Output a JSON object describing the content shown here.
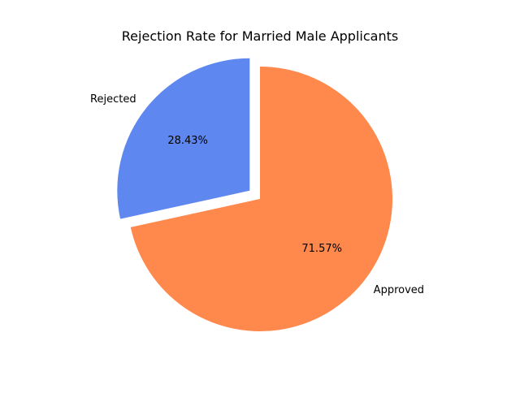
{
  "chart_data": {
    "type": "pie",
    "title": "Rejection Rate for Married Male Applicants",
    "slices": [
      {
        "label": "Rejected",
        "value": 28.43,
        "pct_label": "28.43%",
        "color": "#5e88ef",
        "explode": 0.1
      },
      {
        "label": "Approved",
        "value": 71.57,
        "pct_label": "71.57%",
        "color": "#ff884d",
        "explode": 0
      }
    ],
    "start_angle_deg": 90,
    "direction": "counterclockwise"
  }
}
